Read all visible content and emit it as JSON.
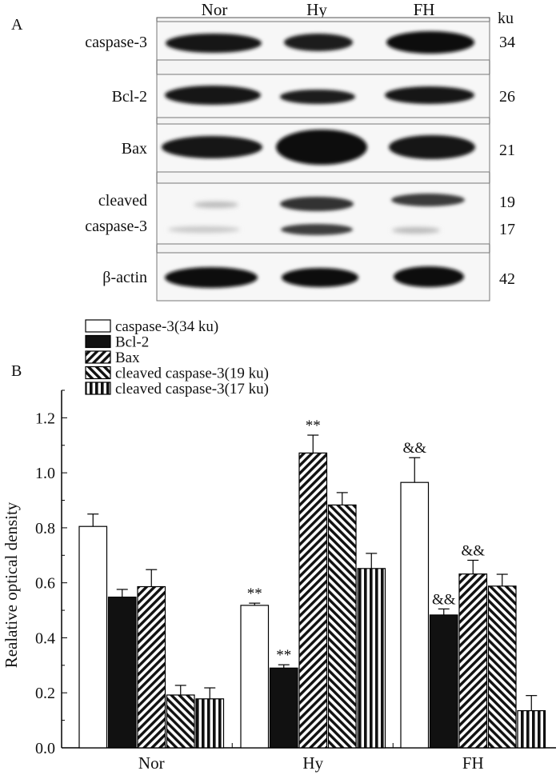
{
  "panel_a": {
    "letter": "A",
    "lanes": [
      "Nor",
      "Hy",
      "FH"
    ],
    "unit": "ku",
    "blots": [
      {
        "label": [
          "caspase-3"
        ],
        "mw": [
          "34"
        ]
      },
      {
        "label": [
          "Bcl-2"
        ],
        "mw": [
          "26"
        ]
      },
      {
        "label": [
          "Bax"
        ],
        "mw": [
          "21"
        ]
      },
      {
        "label": [
          "cleaved",
          "caspase-3"
        ],
        "mw": [
          "19",
          "17"
        ]
      },
      {
        "label": [
          "β-actin"
        ],
        "mw": [
          "42"
        ]
      }
    ]
  },
  "panel_b": {
    "letter": "B"
  },
  "chart_data": {
    "type": "bar",
    "title": "",
    "xlabel": "",
    "ylabel": "Realative optical density",
    "ylim": [
      0,
      1.3
    ],
    "yticks": [
      "0.0",
      "0.2",
      "0.4",
      "0.6",
      "0.8",
      "1.0",
      "1.2"
    ],
    "categories": [
      "Nor",
      "Hy",
      "FH"
    ],
    "legend_position": "top-left",
    "series": [
      {
        "name": "caspase-3(34 ku)",
        "pattern": "white",
        "values": [
          0.805,
          0.518,
          0.965
        ],
        "errors": [
          0.045,
          0.008,
          0.09
        ],
        "annotations": [
          "",
          "**",
          "&&"
        ]
      },
      {
        "name": "Bcl-2",
        "pattern": "black",
        "values": [
          0.548,
          0.29,
          0.483
        ],
        "errors": [
          0.028,
          0.012,
          0.022
        ],
        "annotations": [
          "",
          "**",
          "&&"
        ]
      },
      {
        "name": "Bax",
        "pattern": "diag-right",
        "values": [
          0.586,
          1.072,
          0.632
        ],
        "errors": [
          0.062,
          0.065,
          0.05
        ],
        "annotations": [
          "",
          "**",
          "&&"
        ]
      },
      {
        "name": "cleaved caspase-3(19 ku)",
        "pattern": "diag-left",
        "values": [
          0.192,
          0.883,
          0.588
        ],
        "errors": [
          0.035,
          0.045,
          0.043
        ],
        "annotations": [
          "",
          "",
          ""
        ]
      },
      {
        "name": "cleaved caspase-3(17 ku)",
        "pattern": "vertical",
        "values": [
          0.178,
          0.652,
          0.135
        ],
        "errors": [
          0.04,
          0.055,
          0.055
        ],
        "annotations": [
          "",
          "",
          ""
        ]
      }
    ]
  }
}
